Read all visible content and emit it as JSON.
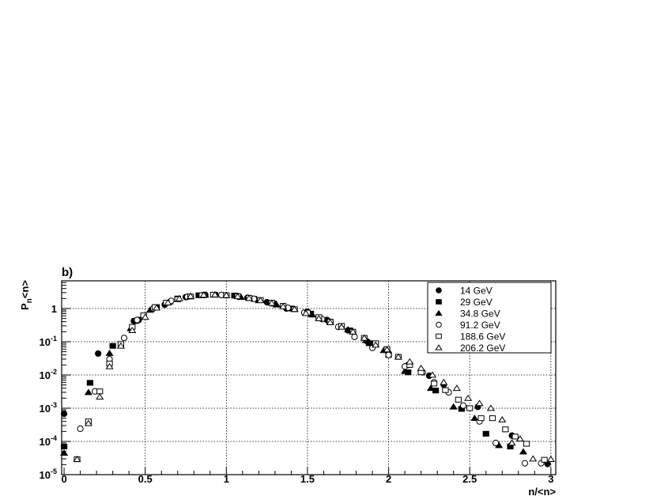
{
  "chart_data": {
    "type": "scatter",
    "panel_label": "b)",
    "xlabel": "n/<n>",
    "ylabel": {
      "main": "P",
      "sub": "n",
      "rest": "<n>"
    },
    "xlim": [
      -0.015,
      3.03
    ],
    "ylim": [
      1e-05,
      6.8
    ],
    "yscale": "log",
    "grid": true,
    "legend_position": "top-right",
    "x_ticks": [
      "0",
      "0.5",
      "1",
      "1.5",
      "2",
      "2.5",
      "3"
    ],
    "y_ticks": [
      {
        "value": 1e-05,
        "base": "10",
        "exp": "-5"
      },
      {
        "value": 0.0001,
        "base": "10",
        "exp": "-4"
      },
      {
        "value": 0.001,
        "base": "10",
        "exp": "-3"
      },
      {
        "value": 0.01,
        "base": "10",
        "exp": "-2"
      },
      {
        "value": 0.1,
        "base": "10",
        "exp": "-1"
      },
      {
        "value": 1,
        "base": "1",
        "exp": ""
      }
    ],
    "series": [
      {
        "name": "14 GeV",
        "marker": "circle-filled",
        "points": [
          [
            0,
            0.00068
          ],
          [
            0.21,
            0.044
          ],
          [
            0.43,
            0.42
          ],
          [
            0.46,
            0.45
          ],
          [
            0.62,
            1.3
          ],
          [
            0.75,
            2.2
          ],
          [
            0.87,
            2.55
          ],
          [
            1.0,
            2.5
          ],
          [
            1.13,
            2.1
          ],
          [
            1.25,
            1.55
          ],
          [
            1.37,
            1.0
          ],
          [
            1.5,
            0.8
          ],
          [
            1.62,
            0.45
          ],
          [
            1.75,
            0.22
          ],
          [
            1.87,
            0.1
          ],
          [
            2.0,
            0.045
          ],
          [
            2.12,
            0.02
          ],
          [
            2.25,
            0.0095
          ],
          [
            2.34,
            0.0051
          ],
          [
            2.55,
            0.0011
          ],
          [
            2.76,
            0.00015
          ],
          [
            2.75,
            7.3e-05
          ],
          [
            2.98,
            2.1e-05
          ]
        ]
      },
      {
        "name": "29 GeV",
        "marker": "square-filled",
        "points": [
          [
            0,
            7e-05
          ],
          [
            0.16,
            0.0058
          ],
          [
            0.3,
            0.075
          ],
          [
            0.44,
            0.42
          ],
          [
            0.57,
            1.1
          ],
          [
            0.7,
            2.0
          ],
          [
            0.83,
            2.5
          ],
          [
            0.93,
            2.6
          ],
          [
            1.05,
            2.45
          ],
          [
            1.17,
            1.95
          ],
          [
            1.29,
            1.4
          ],
          [
            1.4,
            1.0
          ],
          [
            1.52,
            0.7
          ],
          [
            1.64,
            0.4
          ],
          [
            1.76,
            0.22
          ],
          [
            1.88,
            0.09
          ],
          [
            2.0,
            0.04
          ],
          [
            2.12,
            0.012
          ],
          [
            2.29,
            0.0034
          ],
          [
            2.45,
            0.00095
          ],
          [
            2.6,
            0.00017
          ],
          [
            2.75,
            7e-05
          ]
        ]
      },
      {
        "name": "34.8 GeV",
        "marker": "triangle-filled",
        "points": [
          [
            0,
            4.5e-05
          ],
          [
            0.15,
            0.003
          ],
          [
            0.28,
            0.045
          ],
          [
            0.41,
            0.25
          ],
          [
            0.53,
            0.9
          ],
          [
            0.65,
            1.6
          ],
          [
            0.76,
            2.3
          ],
          [
            0.87,
            2.55
          ],
          [
            0.98,
            2.5
          ],
          [
            1.09,
            2.2
          ],
          [
            1.2,
            1.75
          ],
          [
            1.31,
            1.3
          ],
          [
            1.42,
            0.95
          ],
          [
            1.53,
            0.65
          ],
          [
            1.64,
            0.4
          ],
          [
            1.75,
            0.23
          ],
          [
            1.86,
            0.11
          ],
          [
            1.97,
            0.055
          ],
          [
            2.1,
            0.013
          ],
          [
            2.26,
            0.004
          ],
          [
            2.4,
            0.0011
          ],
          [
            2.53,
            0.0005
          ],
          [
            2.68,
            7.6e-05
          ],
          [
            2.83,
            4.9e-05
          ]
        ]
      },
      {
        "name": "91.2 GeV",
        "marker": "circle-open",
        "points": [
          [
            0.1,
            0.00024
          ],
          [
            0.19,
            0.0032
          ],
          [
            0.28,
            0.03
          ],
          [
            0.37,
            0.13
          ],
          [
            0.45,
            0.45
          ],
          [
            0.55,
            1.0
          ],
          [
            0.66,
            1.7
          ],
          [
            0.76,
            2.25
          ],
          [
            0.86,
            2.55
          ],
          [
            0.97,
            2.55
          ],
          [
            1.07,
            2.35
          ],
          [
            1.17,
            1.95
          ],
          [
            1.28,
            1.45
          ],
          [
            1.38,
            1.05
          ],
          [
            1.48,
            0.75
          ],
          [
            1.59,
            0.48
          ],
          [
            1.69,
            0.28
          ],
          [
            1.79,
            0.14
          ],
          [
            1.9,
            0.065
          ],
          [
            2.0,
            0.04
          ],
          [
            2.1,
            0.018
          ],
          [
            2.21,
            0.012
          ],
          [
            2.28,
            0.006
          ],
          [
            2.37,
            0.003
          ],
          [
            2.46,
            0.0012
          ],
          [
            2.56,
            0.0004
          ],
          [
            2.66,
            9e-05
          ],
          [
            2.84,
            2.2e-05
          ],
          [
            2.94,
            2.2e-05
          ]
        ]
      },
      {
        "name": "188.6 GeV",
        "marker": "square-open",
        "points": [
          [
            0.08,
            2.9e-05
          ],
          [
            0.15,
            0.0004
          ],
          [
            0.22,
            0.0032
          ],
          [
            0.28,
            0.022
          ],
          [
            0.35,
            0.085
          ],
          [
            0.42,
            0.28
          ],
          [
            0.49,
            0.62
          ],
          [
            0.56,
            1.1
          ],
          [
            0.63,
            1.5
          ],
          [
            0.7,
            1.9
          ],
          [
            0.78,
            2.3
          ],
          [
            0.85,
            2.5
          ],
          [
            0.92,
            2.6
          ],
          [
            1.0,
            2.5
          ],
          [
            1.07,
            2.35
          ],
          [
            1.14,
            2.1
          ],
          [
            1.21,
            1.8
          ],
          [
            1.28,
            1.5
          ],
          [
            1.35,
            1.2
          ],
          [
            1.42,
            0.95
          ],
          [
            1.5,
            0.75
          ],
          [
            1.57,
            0.55
          ],
          [
            1.64,
            0.4
          ],
          [
            1.71,
            0.3
          ],
          [
            1.78,
            0.2
          ],
          [
            1.85,
            0.13
          ],
          [
            1.92,
            0.09
          ],
          [
            1.99,
            0.06
          ],
          [
            2.06,
            0.035
          ],
          [
            2.13,
            0.02
          ],
          [
            2.2,
            0.012
          ],
          [
            2.28,
            0.0055
          ],
          [
            2.35,
            0.0035
          ],
          [
            2.43,
            0.0018
          ],
          [
            2.5,
            0.001
          ],
          [
            2.57,
            0.0005
          ],
          [
            2.64,
            0.0005
          ],
          [
            2.72,
            0.00023
          ],
          [
            2.78,
            0.00014
          ],
          [
            2.85,
            8.5e-05
          ],
          [
            2.96,
            2.8e-05
          ]
        ]
      },
      {
        "name": "206.2 GeV",
        "marker": "triangle-open",
        "points": [
          [
            0.08,
            2.9e-05
          ],
          [
            0.15,
            0.00035
          ],
          [
            0.22,
            0.0022
          ],
          [
            0.28,
            0.018
          ],
          [
            0.35,
            0.075
          ],
          [
            0.42,
            0.22
          ],
          [
            0.5,
            0.55
          ],
          [
            0.57,
            1.05
          ],
          [
            0.64,
            1.5
          ],
          [
            0.71,
            2.0
          ],
          [
            0.78,
            2.35
          ],
          [
            0.86,
            2.55
          ],
          [
            0.93,
            2.6
          ],
          [
            1.0,
            2.5
          ],
          [
            1.07,
            2.3
          ],
          [
            1.14,
            2.05
          ],
          [
            1.21,
            1.75
          ],
          [
            1.28,
            1.45
          ],
          [
            1.35,
            1.15
          ],
          [
            1.42,
            0.95
          ],
          [
            1.49,
            0.72
          ],
          [
            1.57,
            0.5
          ],
          [
            1.64,
            0.38
          ],
          [
            1.71,
            0.28
          ],
          [
            1.78,
            0.2
          ],
          [
            1.85,
            0.13
          ],
          [
            1.92,
            0.08
          ],
          [
            1.99,
            0.058
          ],
          [
            2.06,
            0.035
          ],
          [
            2.13,
            0.025
          ],
          [
            2.2,
            0.016
          ],
          [
            2.27,
            0.01
          ],
          [
            2.34,
            0.006
          ],
          [
            2.42,
            0.004
          ],
          [
            2.49,
            0.002
          ],
          [
            2.56,
            0.0014
          ],
          [
            2.63,
            0.001
          ],
          [
            2.7,
            0.00045
          ],
          [
            2.76,
            9e-05
          ],
          [
            2.81,
            0.00012
          ],
          [
            2.89,
            3e-05
          ],
          [
            3.0,
            2.9e-05
          ]
        ]
      }
    ]
  }
}
